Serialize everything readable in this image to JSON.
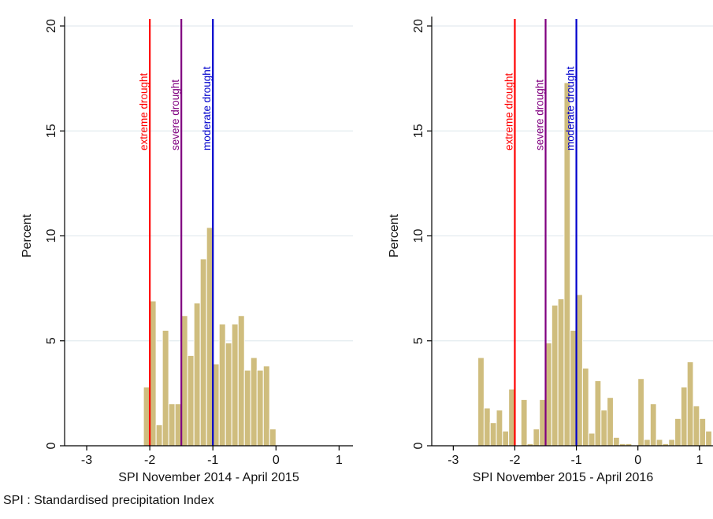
{
  "footnote": "SPI : Standardised precipitation Index",
  "colors": {
    "bar_fill": "#cfbd7e",
    "bar_stroke": "#ffffff",
    "extreme": "#ff0000",
    "severe": "#800080",
    "moderate": "#0000cc",
    "grid": "#e3ebef",
    "axis": "#000000"
  },
  "chart_data": [
    {
      "type": "bar",
      "subtype": "histogram",
      "xlabel": "SPI November 2014 - April 2015",
      "ylabel": "Percent",
      "xlim": [
        -3.35,
        1.22
      ],
      "ylim": [
        0,
        20.3
      ],
      "xticks": [
        -3,
        -2,
        -1,
        0,
        1
      ],
      "xtick_labels": [
        "-3",
        "-2",
        "-1",
        "0",
        "1"
      ],
      "yticks": [
        0,
        5,
        10,
        15,
        20
      ],
      "ytick_labels": [
        "0",
        "5",
        "10",
        "15",
        "20"
      ],
      "grid": true,
      "bin_width": 0.1,
      "bins": [
        {
          "start": -2.1,
          "value": 2.8
        },
        {
          "start": -2.0,
          "value": 6.9
        },
        {
          "start": -1.9,
          "value": 1.0
        },
        {
          "start": -1.8,
          "value": 5.5
        },
        {
          "start": -1.7,
          "value": 2.0
        },
        {
          "start": -1.6,
          "value": 2.0
        },
        {
          "start": -1.5,
          "value": 6.2
        },
        {
          "start": -1.4,
          "value": 4.3
        },
        {
          "start": -1.3,
          "value": 6.8
        },
        {
          "start": -1.2,
          "value": 8.9
        },
        {
          "start": -1.1,
          "value": 10.4
        },
        {
          "start": -1.0,
          "value": 3.9
        },
        {
          "start": -0.9,
          "value": 5.8
        },
        {
          "start": -0.8,
          "value": 4.9
        },
        {
          "start": -0.7,
          "value": 5.8
        },
        {
          "start": -0.6,
          "value": 6.2
        },
        {
          "start": -0.5,
          "value": 3.6
        },
        {
          "start": -0.4,
          "value": 4.2
        },
        {
          "start": -0.3,
          "value": 3.6
        },
        {
          "start": -0.2,
          "value": 3.8
        },
        {
          "start": -0.1,
          "value": 0.8
        }
      ],
      "reference_lines": [
        {
          "x": -2,
          "label": "extreme drought",
          "color": "#ff0000"
        },
        {
          "x": -1.5,
          "label": "severe drought",
          "color": "#800080"
        },
        {
          "x": -1,
          "label": "moderate drought",
          "color": "#0000cc"
        }
      ]
    },
    {
      "type": "bar",
      "subtype": "histogram",
      "xlabel": "SPI November 2015 - April 2016",
      "ylabel": "Percent",
      "xlim": [
        -3.35,
        1.22
      ],
      "ylim": [
        0,
        20.3
      ],
      "xticks": [
        -3,
        -2,
        -1,
        0,
        1
      ],
      "xtick_labels": [
        "-3",
        "-2",
        "-1",
        "0",
        "1"
      ],
      "yticks": [
        0,
        5,
        10,
        15,
        20
      ],
      "ytick_labels": [
        "0",
        "5",
        "10",
        "15",
        "20"
      ],
      "grid": true,
      "bin_width": 0.1,
      "bins": [
        {
          "start": -2.6,
          "value": 4.2
        },
        {
          "start": -2.5,
          "value": 1.8
        },
        {
          "start": -2.4,
          "value": 1.1
        },
        {
          "start": -2.3,
          "value": 1.7
        },
        {
          "start": -2.2,
          "value": 0.7
        },
        {
          "start": -2.1,
          "value": 2.7
        },
        {
          "start": -2.0,
          "value": 0.0
        },
        {
          "start": -1.9,
          "value": 2.2
        },
        {
          "start": -1.8,
          "value": 0.1
        },
        {
          "start": -1.7,
          "value": 0.8
        },
        {
          "start": -1.6,
          "value": 2.2
        },
        {
          "start": -1.5,
          "value": 4.9
        },
        {
          "start": -1.4,
          "value": 6.7
        },
        {
          "start": -1.3,
          "value": 7.0
        },
        {
          "start": -1.2,
          "value": 17.3
        },
        {
          "start": -1.1,
          "value": 5.5
        },
        {
          "start": -1.0,
          "value": 7.2
        },
        {
          "start": -0.9,
          "value": 3.7
        },
        {
          "start": -0.8,
          "value": 0.6
        },
        {
          "start": -0.7,
          "value": 3.1
        },
        {
          "start": -0.6,
          "value": 1.7
        },
        {
          "start": -0.5,
          "value": 2.3
        },
        {
          "start": -0.4,
          "value": 0.4
        },
        {
          "start": -0.3,
          "value": 0.1
        },
        {
          "start": -0.2,
          "value": 0.1
        },
        {
          "start": -0.1,
          "value": 0.0
        },
        {
          "start": 0.0,
          "value": 3.2
        },
        {
          "start": 0.1,
          "value": 0.3
        },
        {
          "start": 0.2,
          "value": 2.0
        },
        {
          "start": 0.3,
          "value": 0.3
        },
        {
          "start": 0.4,
          "value": 0.1
        },
        {
          "start": 0.5,
          "value": 0.3
        },
        {
          "start": 0.6,
          "value": 1.3
        },
        {
          "start": 0.7,
          "value": 2.8
        },
        {
          "start": 0.8,
          "value": 4.0
        },
        {
          "start": 0.9,
          "value": 1.9
        },
        {
          "start": 1.0,
          "value": 1.3
        },
        {
          "start": 1.1,
          "value": 0.7
        }
      ],
      "reference_lines": [
        {
          "x": -2,
          "label": "extreme drought",
          "color": "#ff0000"
        },
        {
          "x": -1.5,
          "label": "severe drought",
          "color": "#800080"
        },
        {
          "x": -1,
          "label": "moderate drought",
          "color": "#0000cc"
        }
      ]
    }
  ]
}
